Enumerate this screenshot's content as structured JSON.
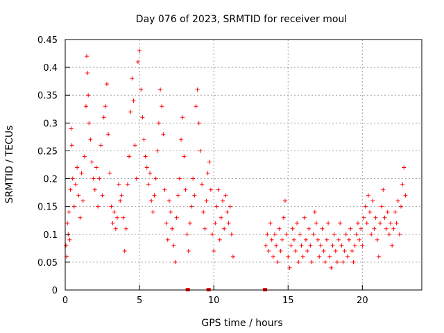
{
  "chart_data": {
    "type": "scatter",
    "title": "Day 076 of 2023, SRMTID for receiver moul",
    "xlabel": "GPS time / hours",
    "ylabel": "SRMTID / TECUs",
    "xlim": [
      0,
      24
    ],
    "ylim": [
      0,
      0.45
    ],
    "x_ticks": [
      0,
      5,
      10,
      15,
      20
    ],
    "x_tick_labels": [
      "0",
      "5",
      "10",
      "15",
      "20"
    ],
    "y_ticks": [
      0,
      0.05,
      0.1,
      0.15,
      0.2,
      0.25,
      0.3,
      0.35,
      0.4,
      0.45
    ],
    "y_tick_labels": [
      "0",
      "0.05",
      "0.1",
      "0.15",
      "0.2",
      "0.25",
      "0.3",
      "0.35",
      "0.4",
      "0.45"
    ],
    "grid": true,
    "marker": "plus",
    "series_color": "#ff0000",
    "zero_markers_x": [
      8.25,
      9.65,
      13.45
    ],
    "series": [
      {
        "name": "SRMTID",
        "points": [
          [
            0.05,
            0.08
          ],
          [
            0.1,
            0.06
          ],
          [
            0.15,
            0.12
          ],
          [
            0.2,
            0.1
          ],
          [
            0.25,
            0.14
          ],
          [
            0.3,
            0.09
          ],
          [
            0.35,
            0.18
          ],
          [
            0.4,
            0.29
          ],
          [
            0.45,
            0.26
          ],
          [
            0.5,
            0.2
          ],
          [
            0.6,
            0.15
          ],
          [
            0.7,
            0.19
          ],
          [
            0.8,
            0.22
          ],
          [
            0.9,
            0.17
          ],
          [
            1.0,
            0.13
          ],
          [
            1.1,
            0.21
          ],
          [
            1.2,
            0.16
          ],
          [
            1.3,
            0.24
          ],
          [
            1.4,
            0.33
          ],
          [
            1.45,
            0.42
          ],
          [
            1.5,
            0.39
          ],
          [
            1.55,
            0.35
          ],
          [
            1.6,
            0.3
          ],
          [
            1.7,
            0.27
          ],
          [
            1.8,
            0.23
          ],
          [
            1.9,
            0.2
          ],
          [
            2.0,
            0.18
          ],
          [
            2.1,
            0.22
          ],
          [
            2.2,
            0.15
          ],
          [
            2.3,
            0.2
          ],
          [
            2.4,
            0.26
          ],
          [
            2.5,
            0.17
          ],
          [
            2.6,
            0.31
          ],
          [
            2.7,
            0.33
          ],
          [
            2.8,
            0.37
          ],
          [
            2.9,
            0.28
          ],
          [
            3.0,
            0.21
          ],
          [
            3.1,
            0.15
          ],
          [
            3.2,
            0.12
          ],
          [
            3.3,
            0.14
          ],
          [
            3.4,
            0.11
          ],
          [
            3.5,
            0.13
          ],
          [
            3.6,
            0.19
          ],
          [
            3.7,
            0.16
          ],
          [
            3.8,
            0.17
          ],
          [
            3.9,
            0.13
          ],
          [
            4.0,
            0.07
          ],
          [
            4.1,
            0.11
          ],
          [
            4.2,
            0.19
          ],
          [
            4.3,
            0.24
          ],
          [
            4.4,
            0.32
          ],
          [
            4.5,
            0.38
          ],
          [
            4.6,
            0.34
          ],
          [
            4.7,
            0.26
          ],
          [
            4.8,
            0.2
          ],
          [
            4.9,
            0.41
          ],
          [
            5.0,
            0.43
          ],
          [
            5.1,
            0.36
          ],
          [
            5.2,
            0.31
          ],
          [
            5.3,
            0.27
          ],
          [
            5.4,
            0.24
          ],
          [
            5.5,
            0.22
          ],
          [
            5.6,
            0.19
          ],
          [
            5.7,
            0.21
          ],
          [
            5.8,
            0.16
          ],
          [
            5.9,
            0.14
          ],
          [
            6.0,
            0.17
          ],
          [
            6.1,
            0.2
          ],
          [
            6.2,
            0.25
          ],
          [
            6.3,
            0.3
          ],
          [
            6.4,
            0.36
          ],
          [
            6.5,
            0.33
          ],
          [
            6.6,
            0.28
          ],
          [
            6.7,
            0.18
          ],
          [
            6.8,
            0.12
          ],
          [
            6.9,
            0.09
          ],
          [
            7.0,
            0.16
          ],
          [
            7.1,
            0.14
          ],
          [
            7.2,
            0.11
          ],
          [
            7.3,
            0.08
          ],
          [
            7.4,
            0.05
          ],
          [
            7.5,
            0.13
          ],
          [
            7.6,
            0.17
          ],
          [
            7.7,
            0.2
          ],
          [
            7.8,
            0.27
          ],
          [
            7.9,
            0.31
          ],
          [
            8.0,
            0.24
          ],
          [
            8.1,
            0.18
          ],
          [
            8.2,
            0.1
          ],
          [
            8.3,
            0.07
          ],
          [
            8.4,
            0.12
          ],
          [
            8.5,
            0.15
          ],
          [
            8.6,
            0.2
          ],
          [
            8.7,
            0.17
          ],
          [
            8.8,
            0.33
          ],
          [
            8.9,
            0.36
          ],
          [
            9.0,
            0.3
          ],
          [
            9.1,
            0.25
          ],
          [
            9.2,
            0.19
          ],
          [
            9.3,
            0.14
          ],
          [
            9.4,
            0.11
          ],
          [
            9.5,
            0.16
          ],
          [
            9.6,
            0.21
          ],
          [
            9.7,
            0.23
          ],
          [
            9.8,
            0.18
          ],
          [
            9.9,
            0.1
          ],
          [
            10.0,
            0.07
          ],
          [
            10.1,
            0.12
          ],
          [
            10.2,
            0.15
          ],
          [
            10.3,
            0.18
          ],
          [
            10.4,
            0.09
          ],
          [
            10.5,
            0.13
          ],
          [
            10.6,
            0.16
          ],
          [
            10.7,
            0.11
          ],
          [
            10.8,
            0.17
          ],
          [
            10.9,
            0.14
          ],
          [
            11.0,
            0.12
          ],
          [
            11.1,
            0.15
          ],
          [
            11.2,
            0.1
          ],
          [
            11.3,
            0.06
          ],
          [
            13.5,
            0.08
          ],
          [
            13.6,
            0.1
          ],
          [
            13.7,
            0.07
          ],
          [
            13.8,
            0.12
          ],
          [
            13.9,
            0.09
          ],
          [
            14.0,
            0.06
          ],
          [
            14.1,
            0.1
          ],
          [
            14.2,
            0.08
          ],
          [
            14.3,
            0.05
          ],
          [
            14.4,
            0.11
          ],
          [
            14.5,
            0.07
          ],
          [
            14.6,
            0.09
          ],
          [
            14.7,
            0.13
          ],
          [
            14.8,
            0.16
          ],
          [
            14.9,
            0.1
          ],
          [
            15.0,
            0.06
          ],
          [
            15.1,
            0.04
          ],
          [
            15.2,
            0.08
          ],
          [
            15.3,
            0.11
          ],
          [
            15.4,
            0.09
          ],
          [
            15.5,
            0.07
          ],
          [
            15.6,
            0.12
          ],
          [
            15.7,
            0.05
          ],
          [
            15.8,
            0.1
          ],
          [
            15.9,
            0.08
          ],
          [
            16.0,
            0.06
          ],
          [
            16.1,
            0.13
          ],
          [
            16.2,
            0.09
          ],
          [
            16.3,
            0.07
          ],
          [
            16.4,
            0.11
          ],
          [
            16.5,
            0.08
          ],
          [
            16.6,
            0.05
          ],
          [
            16.7,
            0.1
          ],
          [
            16.8,
            0.14
          ],
          [
            16.9,
            0.12
          ],
          [
            17.0,
            0.09
          ],
          [
            17.1,
            0.06
          ],
          [
            17.2,
            0.08
          ],
          [
            17.3,
            0.11
          ],
          [
            17.4,
            0.07
          ],
          [
            17.5,
            0.05
          ],
          [
            17.6,
            0.09
          ],
          [
            17.7,
            0.12
          ],
          [
            17.8,
            0.06
          ],
          [
            17.9,
            0.04
          ],
          [
            18.0,
            0.08
          ],
          [
            18.1,
            0.1
          ],
          [
            18.2,
            0.07
          ],
          [
            18.3,
            0.05
          ],
          [
            18.4,
            0.09
          ],
          [
            18.5,
            0.12
          ],
          [
            18.6,
            0.08
          ],
          [
            18.7,
            0.05
          ],
          [
            18.8,
            0.07
          ],
          [
            18.9,
            0.1
          ],
          [
            19.0,
            0.06
          ],
          [
            19.1,
            0.09
          ],
          [
            19.2,
            0.11
          ],
          [
            19.3,
            0.07
          ],
          [
            19.4,
            0.05
          ],
          [
            19.5,
            0.08
          ],
          [
            19.6,
            0.1
          ],
          [
            19.7,
            0.12
          ],
          [
            19.8,
            0.09
          ],
          [
            19.9,
            0.11
          ],
          [
            20.0,
            0.08
          ],
          [
            20.1,
            0.13
          ],
          [
            20.2,
            0.15
          ],
          [
            20.3,
            0.12
          ],
          [
            20.4,
            0.17
          ],
          [
            20.5,
            0.14
          ],
          [
            20.6,
            0.1
          ],
          [
            20.7,
            0.16
          ],
          [
            20.8,
            0.11
          ],
          [
            20.9,
            0.13
          ],
          [
            21.0,
            0.09
          ],
          [
            21.1,
            0.06
          ],
          [
            21.2,
            0.12
          ],
          [
            21.3,
            0.15
          ],
          [
            21.4,
            0.18
          ],
          [
            21.5,
            0.13
          ],
          [
            21.6,
            0.11
          ],
          [
            21.7,
            0.14
          ],
          [
            21.8,
            0.1
          ],
          [
            21.9,
            0.12
          ],
          [
            22.0,
            0.08
          ],
          [
            22.1,
            0.11
          ],
          [
            22.2,
            0.14
          ],
          [
            22.3,
            0.12
          ],
          [
            22.4,
            0.16
          ],
          [
            22.5,
            0.1
          ],
          [
            22.6,
            0.15
          ],
          [
            22.7,
            0.19
          ],
          [
            22.8,
            0.22
          ],
          [
            22.9,
            0.17
          ]
        ]
      }
    ]
  }
}
